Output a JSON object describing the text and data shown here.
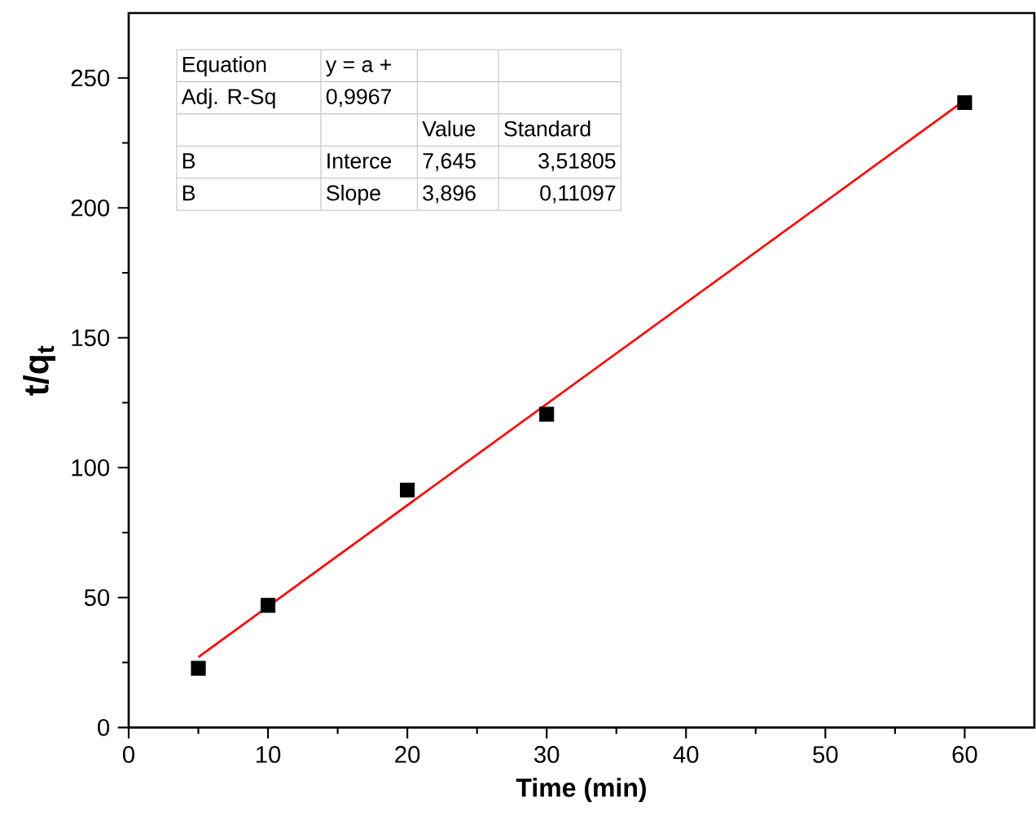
{
  "chart_data": {
    "type": "scatter",
    "xlabel": "Time (min)",
    "ylabel": "t/q$_{t}$",
    "xlim": [
      0,
      65
    ],
    "ylim": [
      0,
      275
    ],
    "xticks": [
      0,
      10,
      20,
      30,
      40,
      50,
      60
    ],
    "yticks": [
      0,
      50,
      100,
      150,
      200,
      250
    ],
    "grid": false,
    "series": [
      {
        "marker": "square",
        "color": "#000000",
        "x": [
          5,
          10,
          20,
          30,
          60
        ],
        "values": [
          22.8,
          47,
          91.4,
          120.6,
          240.5
        ]
      },
      {
        "type": "line",
        "color": "#ff0000",
        "x": [
          5,
          60
        ],
        "values": [
          27.1,
          241.4
        ]
      }
    ],
    "annotations": [
      "Equation",
      "y = a +",
      "Adj. R-Sq",
      "0,9967",
      "Value",
      "Standard",
      "B",
      "Interce",
      "7,645",
      "3,51805",
      "B",
      "Slope",
      "3,896",
      "0,11097"
    ]
  }
}
